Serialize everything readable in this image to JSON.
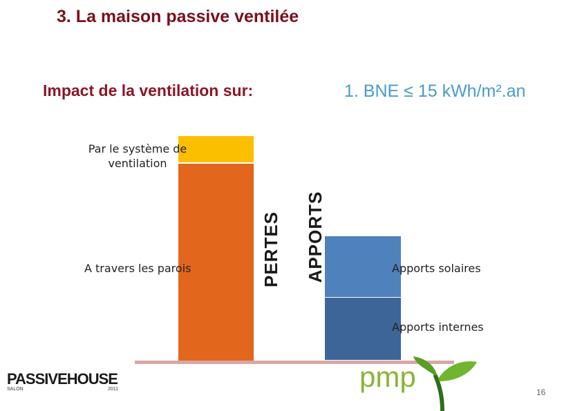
{
  "heading": "3.  La maison passive ventilée",
  "subtitle": "Impact de la ventilation sur:",
  "bne": "1. BNE ≤ 15 kWh/m².an",
  "losses_bar": {
    "axis_label": "PERTES",
    "segments": [
      {
        "label": "Par le système de ventilation",
        "color": "#fcbf00"
      },
      {
        "label": "A travers les parois",
        "color": "#e2661c"
      }
    ]
  },
  "gains_bar": {
    "axis_label": "APPORTS",
    "segments": [
      {
        "label": "Apports solaires",
        "color": "#4f81bd"
      },
      {
        "label": "Apports internes",
        "color": "#3d6598"
      }
    ]
  },
  "footer": {
    "logo_left": "PASSIVEHOUSE",
    "logo_left_sub": "SALON",
    "logo_left_year": "2011",
    "logo_right": "pmp",
    "page_number": "16"
  },
  "colors": {
    "heading": "#7a0f1e",
    "bne": "#4a9bc8",
    "baseline": "#d8a7a7",
    "pmp_green": "#8ab43a"
  },
  "icons": [
    "sprout-icon"
  ]
}
